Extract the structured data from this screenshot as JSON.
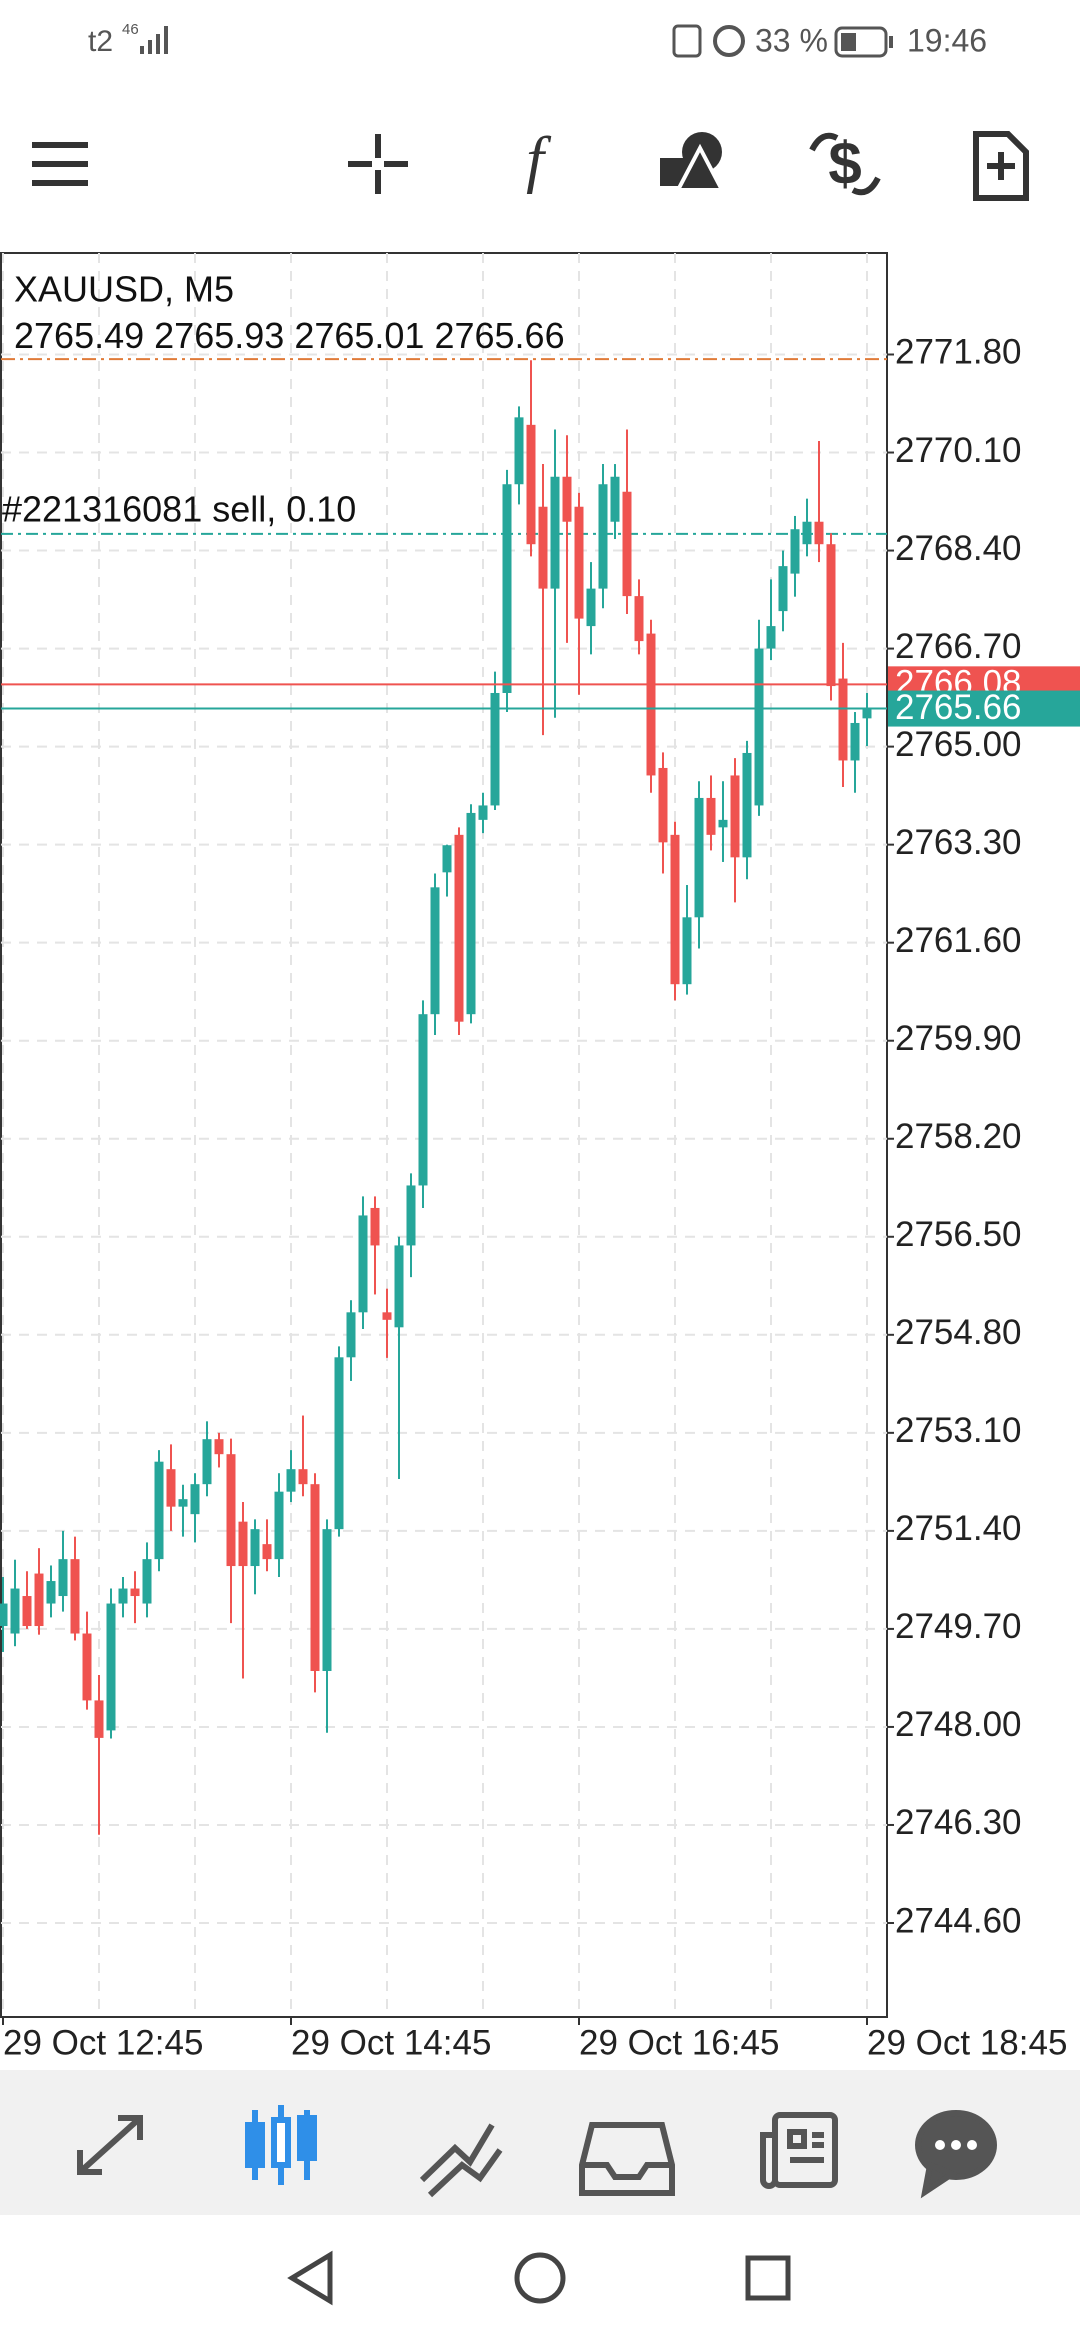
{
  "status_bar": {
    "carrier": "t2",
    "network": "46",
    "battery": "33 %",
    "time": "19:46"
  },
  "chart_data": {
    "type": "candlestick",
    "symbol": "XAUUSD, M5",
    "order": {
      "label": "#221316081 sell, 0.10",
      "price": 2768.69
    },
    "day_high_line": 2771.72,
    "ask": 2766.08,
    "bid": 2765.66,
    "up_color": "#26a69a",
    "down_color": "#ef5350",
    "grid": true,
    "categories": [
      "29 Oct 12:45",
      null,
      null,
      null,
      null,
      null,
      null,
      null,
      null,
      null,
      null,
      null,
      null,
      null,
      null,
      null,
      null,
      null,
      null,
      null,
      null,
      null,
      null,
      null,
      "29 Oct 14:45",
      null,
      null,
      null,
      null,
      null,
      null,
      null,
      null,
      null,
      null,
      null,
      null,
      null,
      null,
      null,
      null,
      null,
      null,
      null,
      null,
      null,
      null,
      null,
      "29 Oct 16:45",
      null,
      null,
      null,
      null,
      null,
      null,
      null,
      null,
      null,
      null,
      null,
      null,
      null,
      null,
      null,
      null,
      null,
      null,
      null,
      null,
      null,
      null,
      null,
      "29 Oct 18:45"
    ],
    "open": [
      2749.75,
      2749.62,
      2750.27,
      2750.66,
      2750.14,
      2750.27,
      2750.91,
      2749.62,
      2748.46,
      2747.94,
      2750.14,
      2750.4,
      2750.14,
      2750.91,
      2752.47,
      2751.82,
      2751.69,
      2752.21,
      2752.99,
      2752.73,
      2751.56,
      2750.79,
      2751.17,
      2750.91,
      2752.08,
      2752.47,
      2752.21,
      2748.97,
      2751.43,
      2754.41,
      2755.19,
      2757.0,
      2755.19,
      2754.93,
      2756.35,
      2757.39,
      2760.36,
      2762.82,
      2763.47,
      2760.36,
      2763.73,
      2763.98,
      2765.93,
      2769.55,
      2770.58,
      2769.16,
      2767.74,
      2769.68,
      2769.16,
      2767.09,
      2767.74,
      2768.9,
      2769.42,
      2767.61,
      2766.96,
      2764.63,
      2763.47,
      2760.88,
      2762.04,
      2764.11,
      2763.6,
      2764.5,
      2763.08,
      2763.98,
      2766.7,
      2767.35,
      2768.0,
      2768.51,
      2768.9,
      2768.51,
      2766.18,
      2764.76,
      2765.49
    ],
    "high": [
      2750.6,
      2750.9,
      2750.7,
      2751.1,
      2750.8,
      2751.4,
      2751.3,
      2750.0,
      2748.9,
      2750.4,
      2750.6,
      2750.7,
      2751.2,
      2752.8,
      2752.9,
      2752.2,
      2752.4,
      2753.3,
      2753.1,
      2753.0,
      2751.9,
      2751.6,
      2751.6,
      2752.4,
      2752.8,
      2753.4,
      2752.4,
      2751.6,
      2754.6,
      2755.4,
      2757.2,
      2757.2,
      2755.6,
      2756.5,
      2757.6,
      2760.6,
      2762.8,
      2763.3,
      2763.6,
      2764.0,
      2764.2,
      2766.3,
      2769.8,
      2770.9,
      2771.7,
      2769.9,
      2770.5,
      2770.4,
      2769.4,
      2768.2,
      2769.9,
      2769.9,
      2770.5,
      2767.9,
      2767.2,
      2764.9,
      2763.7,
      2762.6,
      2764.4,
      2764.5,
      2764.4,
      2764.8,
      2765.1,
      2767.2,
      2767.9,
      2768.4,
      2769.0,
      2769.3,
      2770.3,
      2768.7,
      2766.8,
      2765.6,
      2765.93
    ],
    "low": [
      2749.3,
      2749.4,
      2749.7,
      2749.6,
      2749.9,
      2750.0,
      2749.5,
      2748.3,
      2746.13,
      2747.8,
      2749.9,
      2749.8,
      2749.9,
      2750.7,
      2751.4,
      2751.3,
      2751.2,
      2752.0,
      2752.5,
      2749.8,
      2748.84,
      2750.3,
      2750.7,
      2750.6,
      2751.9,
      2752.0,
      2748.6,
      2747.9,
      2751.3,
      2754.0,
      2754.9,
      2755.5,
      2754.4,
      2752.3,
      2755.8,
      2757.0,
      2760.0,
      2762.4,
      2760.0,
      2760.2,
      2763.5,
      2763.9,
      2765.6,
      2769.2,
      2768.3,
      2765.2,
      2765.5,
      2766.8,
      2765.9,
      2766.6,
      2767.4,
      2768.6,
      2767.3,
      2766.6,
      2764.2,
      2762.8,
      2760.6,
      2760.7,
      2761.5,
      2763.2,
      2763.0,
      2762.3,
      2762.7,
      2763.8,
      2766.5,
      2767.0,
      2767.6,
      2768.3,
      2768.2,
      2765.8,
      2764.3,
      2764.2,
      2765.01
    ],
    "close": [
      2750.14,
      2750.4,
      2749.75,
      2749.75,
      2750.53,
      2750.91,
      2749.62,
      2748.46,
      2747.81,
      2750.14,
      2750.4,
      2750.27,
      2750.91,
      2752.6,
      2751.82,
      2751.95,
      2752.21,
      2752.99,
      2752.73,
      2750.79,
      2750.79,
      2751.43,
      2750.91,
      2752.08,
      2752.47,
      2752.21,
      2748.97,
      2751.43,
      2754.41,
      2755.19,
      2756.87,
      2756.35,
      2755.06,
      2756.35,
      2757.39,
      2760.36,
      2762.56,
      2763.29,
      2760.23,
      2763.85,
      2763.98,
      2765.93,
      2769.55,
      2770.71,
      2768.51,
      2767.74,
      2769.68,
      2768.9,
      2767.22,
      2767.74,
      2769.55,
      2769.68,
      2767.61,
      2766.83,
      2764.5,
      2763.34,
      2760.88,
      2762.04,
      2764.11,
      2763.47,
      2763.73,
      2763.08,
      2764.89,
      2766.7,
      2767.09,
      2768.13,
      2768.77,
      2768.9,
      2768.51,
      2766.05,
      2764.76,
      2765.41,
      2765.66
    ],
    "ylim": [
      2742.97,
      2773.56
    ],
    "yticks": [
      {
        "value": 2771.8,
        "label": "2771.80"
      },
      {
        "value": 2770.1,
        "label": "2770.10"
      },
      {
        "value": 2768.4,
        "label": "2768.40"
      },
      {
        "value": 2766.7,
        "label": "2766.70"
      },
      {
        "value": 2765.0,
        "label": "2765.00"
      },
      {
        "value": 2763.3,
        "label": "2763.30"
      },
      {
        "value": 2761.6,
        "label": "2761.60"
      },
      {
        "value": 2759.9,
        "label": "2759.90"
      },
      {
        "value": 2758.2,
        "label": "2758.20"
      },
      {
        "value": 2756.5,
        "label": "2756.50"
      },
      {
        "value": 2754.8,
        "label": "2754.80"
      },
      {
        "value": 2753.1,
        "label": "2753.10"
      },
      {
        "value": 2751.4,
        "label": "2751.40"
      },
      {
        "value": 2749.7,
        "label": "2749.70"
      },
      {
        "value": 2748.0,
        "label": "2748.00"
      },
      {
        "value": 2746.3,
        "label": "2746.30"
      },
      {
        "value": 2744.6,
        "label": "2744.60"
      }
    ]
  }
}
